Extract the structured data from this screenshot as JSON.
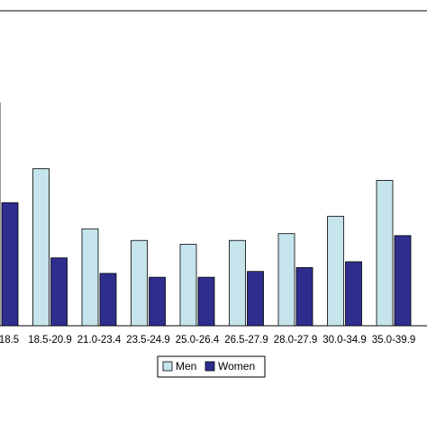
{
  "chart_data": {
    "type": "bar",
    "categories": [
      "18.5",
      "18.5-20.9",
      "21.0-23.4",
      "23.5-24.9",
      "25.0-26.4",
      "26.5-27.9",
      "28.0-27.9",
      "30.0-34.9",
      "35.0-39.9"
    ],
    "series": [
      {
        "name": "Men",
        "color": "#c5e4ec",
        "values": [
          2.3,
          1.62,
          1.0,
          0.88,
          0.84,
          0.88,
          0.95,
          1.13,
          1.5
        ]
      },
      {
        "name": "Women",
        "color": "#2e2e8f",
        "values": [
          1.27,
          0.7,
          0.54,
          0.5,
          0.5,
          0.56,
          0.6,
          0.66,
          0.93
        ]
      }
    ],
    "ylim": [
      0,
      3.25
    ],
    "grid": false,
    "legend_position": "bottom"
  }
}
